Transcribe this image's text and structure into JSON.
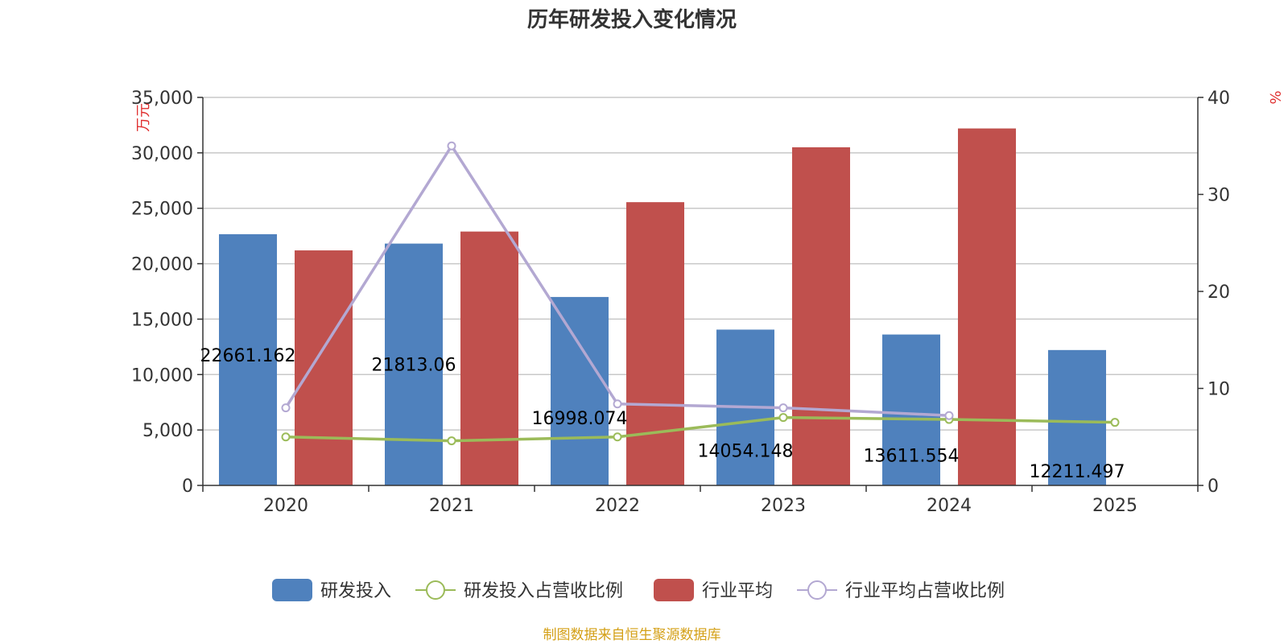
{
  "chart_data": {
    "type": "bar",
    "title": "历年研发投入变化情况",
    "categories": [
      "2020",
      "2021",
      "2022",
      "2023",
      "2024",
      "2025"
    ],
    "y_left": {
      "unit_label": "万元",
      "ticks": [
        "0",
        "5,000",
        "10,000",
        "15,000",
        "20,000",
        "25,000",
        "30,000",
        "35,000"
      ],
      "range": [
        0,
        35000
      ]
    },
    "y_right": {
      "unit_label": "%",
      "ticks": [
        "0",
        "10",
        "20",
        "30",
        "40"
      ],
      "range": [
        0,
        40
      ]
    },
    "series": [
      {
        "name": "研发投入",
        "type": "bar",
        "axis": "left",
        "color": "#4f81bd",
        "values": [
          22661.162,
          21813.06,
          16998.074,
          14054.148,
          13611.554,
          12211.497
        ],
        "labels": [
          "22661.162",
          "21813.06",
          "16998.074",
          "14054.148",
          "13611.554",
          "12211.497"
        ]
      },
      {
        "name": "研发投入占营收比例",
        "type": "line",
        "axis": "right",
        "color": "#9bbb59",
        "values": [
          5.0,
          4.6,
          5.0,
          7.0,
          6.8,
          6.5
        ]
      },
      {
        "name": "行业平均",
        "type": "bar",
        "axis": "left",
        "color": "#c0504d",
        "values": [
          21200,
          22900,
          25550,
          30500,
          32200,
          null
        ]
      },
      {
        "name": "行业平均占营收比例",
        "type": "line",
        "axis": "right",
        "color": "#b3a8d2",
        "values": [
          8.0,
          35.0,
          8.4,
          8.0,
          7.2,
          null
        ]
      }
    ],
    "grid": true,
    "legend_position": "bottom"
  },
  "source_text": "制图数据来自恒生聚源数据库",
  "colors": {
    "axis": "#333333",
    "grid": "#c8c8c8",
    "unit_label": "#e03030",
    "source": "#d4a017"
  }
}
